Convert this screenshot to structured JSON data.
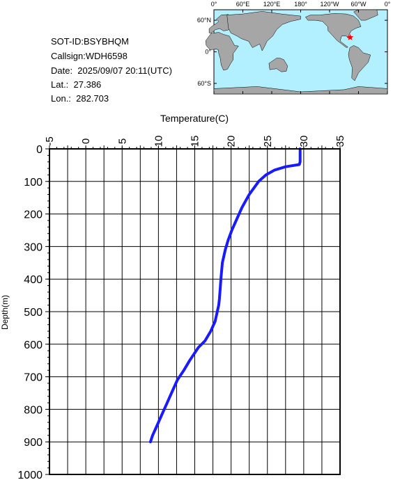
{
  "header": {
    "sot_id": "SOT-ID:BSYBHQM",
    "callsign": "Callsign:WDH6598",
    "date": "Date:  2025/09/07 20:11(UTC)",
    "lat": "Lat.:  27.386",
    "lon": "Lon.:  282.703"
  },
  "map": {
    "lon_labels": [
      "0°",
      "60°E",
      "120°E",
      "180°",
      "120°W",
      "60°W",
      "0°"
    ],
    "lat_labels": [
      "60°N",
      "0°",
      "60°S"
    ],
    "marker": {
      "lat": 27.386,
      "lon": 282.703
    },
    "ocean_color": "#b3f0ff",
    "land_color": "#a6a6a6",
    "marker_color": "#ff0000"
  },
  "chart_data": {
    "type": "line",
    "title": "",
    "xlabel": "Temperature(C)",
    "ylabel": "Depth(m)",
    "xlim": [
      -5,
      35
    ],
    "ylim": [
      1000,
      0
    ],
    "x_ticks": [
      "-5",
      "0",
      "5",
      "10",
      "15",
      "20",
      "25",
      "30",
      "35"
    ],
    "y_ticks": [
      "0",
      "100",
      "200",
      "300",
      "400",
      "500",
      "600",
      "700",
      "800",
      "900",
      "1000"
    ],
    "grid": true,
    "line_color": "#1a1aff",
    "series": [
      {
        "x": [
          29.5,
          29.5,
          29.5,
          29.4,
          27.5,
          26.0,
          24.8,
          23.8,
          22.5,
          21.5,
          20.7,
          20.1,
          19.6,
          19.2,
          18.8,
          18.6,
          18.5,
          18.4,
          18.3,
          18.1,
          17.8,
          17.2,
          16.4,
          15.5,
          14.3,
          13.5,
          12.6,
          11.8,
          11.2,
          10.6,
          10.0,
          9.6,
          9.2,
          8.9
        ],
        "y": [
          0,
          20,
          40,
          48,
          55,
          65,
          80,
          100,
          140,
          180,
          220,
          250,
          280,
          310,
          350,
          400,
          430,
          460,
          480,
          500,
          530,
          560,
          590,
          610,
          650,
          680,
          710,
          750,
          780,
          810,
          840,
          860,
          880,
          900
        ]
      }
    ]
  }
}
